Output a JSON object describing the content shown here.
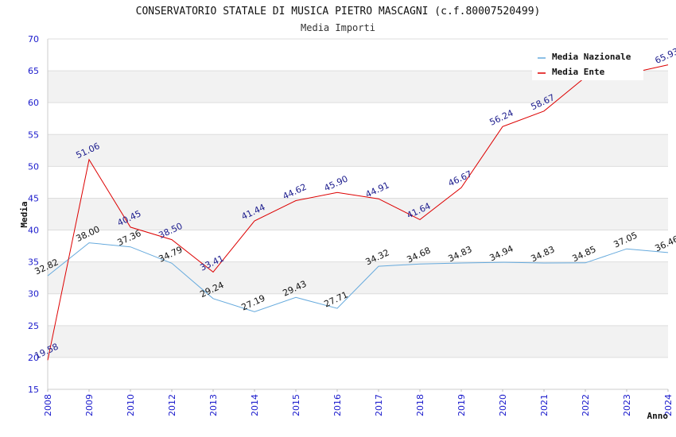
{
  "chart_data": {
    "type": "line",
    "title": "CONSERVATORIO STATALE DI MUSICA PIETRO MASCAGNI (c.f.80007520499)",
    "subtitle": "Media Importi",
    "xlabel": "Anno",
    "ylabel": "Media",
    "ylim": [
      15,
      70
    ],
    "yticks": [
      15,
      20,
      25,
      30,
      35,
      40,
      45,
      50,
      55,
      60,
      65,
      70
    ],
    "categories": [
      "2008",
      "2009",
      "2010",
      "2012",
      "2013",
      "2014",
      "2015",
      "2016",
      "2017",
      "2018",
      "2019",
      "2020",
      "2021",
      "2022",
      "2023",
      "2024"
    ],
    "legend_position": "top-right",
    "series": [
      {
        "name": "Media Nazionale",
        "color": "#66aadd",
        "values": [
          32.82,
          38.0,
          37.36,
          34.79,
          29.24,
          27.19,
          29.43,
          27.71,
          34.32,
          34.68,
          34.83,
          34.94,
          34.83,
          34.85,
          37.05,
          36.46
        ],
        "labels": [
          "32.82",
          "38.00",
          "37.36",
          "34.79",
          "29.24",
          "27.19",
          "29.43",
          "27.71",
          "34.32",
          "34.68",
          "34.83",
          "34.94",
          "34.83",
          "34.85",
          "37.05",
          "36.46"
        ]
      },
      {
        "name": "Media Ente",
        "color": "#dd0000",
        "values": [
          19.58,
          51.06,
          40.45,
          38.5,
          33.41,
          41.44,
          44.62,
          45.9,
          44.91,
          41.64,
          46.67,
          56.24,
          58.67,
          64.0,
          64.5,
          65.93
        ],
        "labels": [
          "19.58",
          "51.06",
          "40.45",
          "38.50",
          "33.41",
          "41.44",
          "44.62",
          "45.90",
          "44.91",
          "41.64",
          "46.67",
          "56.24",
          "58.67",
          "",
          "",
          "65.93"
        ]
      }
    ]
  }
}
